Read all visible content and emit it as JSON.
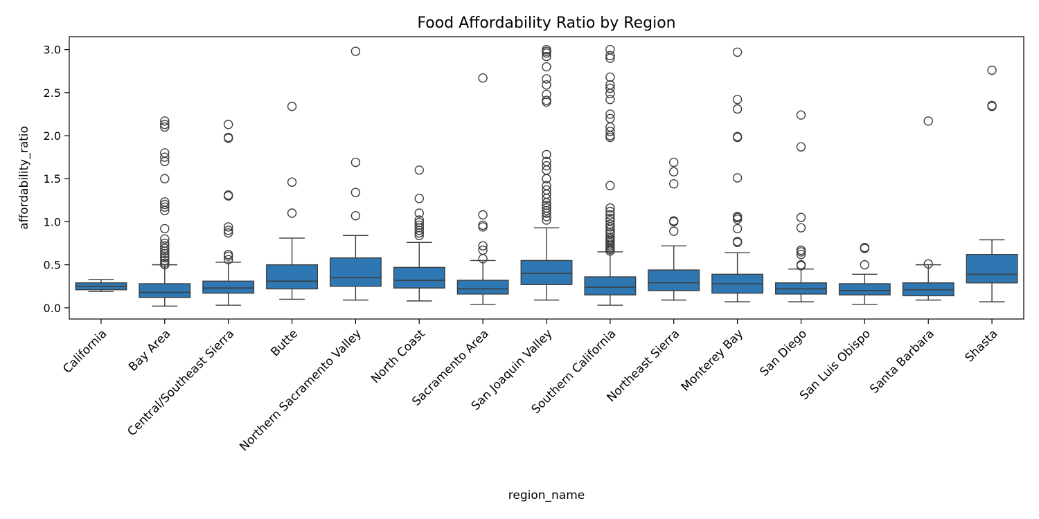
{
  "chart_data": {
    "type": "box",
    "title": "Food Affordability Ratio by Region",
    "xlabel": "region_name",
    "ylabel": "affordability_ratio",
    "ylim": [
      -0.13,
      3.15
    ],
    "yticks": [
      0.0,
      0.5,
      1.0,
      1.5,
      2.0,
      2.5,
      3.0
    ],
    "ytick_labels": [
      "0.0",
      "0.5",
      "1.0",
      "1.5",
      "2.0",
      "2.5",
      "3.0"
    ],
    "grid": false,
    "box_color": "#2f77b2",
    "line_color": "#3d3d3d",
    "categories": [
      "California",
      "Bay Area",
      "Central/Southeast Sierra",
      "Butte",
      "Northern Sacramento Valley",
      "North Coast",
      "Sacramento Area",
      "San Joaquin Valley",
      "Southern California",
      "Northeast Sierra",
      "Monterey Bay",
      "San Diego",
      "San Luis Obispo",
      "Santa Barbara",
      "Shasta"
    ],
    "boxes": [
      {
        "whislo": 0.19,
        "q1": 0.21,
        "med": 0.25,
        "q3": 0.29,
        "whishi": 0.33,
        "fliers": []
      },
      {
        "whislo": 0.02,
        "q1": 0.12,
        "med": 0.18,
        "q3": 0.28,
        "whishi": 0.5,
        "fliers": [
          0.5,
          0.52,
          0.55,
          0.58,
          0.6,
          0.63,
          0.66,
          0.69,
          0.72,
          0.75,
          0.8,
          0.92,
          1.13,
          1.17,
          1.2,
          1.23,
          1.5,
          1.7,
          1.75,
          1.8,
          2.1,
          2.13,
          2.17
        ]
      },
      {
        "whislo": 0.03,
        "q1": 0.17,
        "med": 0.23,
        "q3": 0.31,
        "whishi": 0.53,
        "fliers": [
          0.56,
          0.6,
          0.62,
          0.87,
          0.9,
          0.94,
          1.3,
          1.31,
          1.97,
          1.98,
          2.13
        ]
      },
      {
        "whislo": 0.1,
        "q1": 0.22,
        "med": 0.31,
        "q3": 0.5,
        "whishi": 0.81,
        "fliers": [
          1.1,
          1.46,
          2.34
        ]
      },
      {
        "whislo": 0.09,
        "q1": 0.25,
        "med": 0.35,
        "q3": 0.58,
        "whishi": 0.84,
        "fliers": [
          1.07,
          1.34,
          1.69,
          2.98
        ]
      },
      {
        "whislo": 0.08,
        "q1": 0.23,
        "med": 0.32,
        "q3": 0.47,
        "whishi": 0.76,
        "fliers": [
          0.84,
          0.87,
          0.9,
          0.93,
          0.96,
          0.99,
          1.02,
          1.1,
          1.27,
          1.6
        ]
      },
      {
        "whislo": 0.04,
        "q1": 0.16,
        "med": 0.22,
        "q3": 0.32,
        "whishi": 0.55,
        "fliers": [
          0.57,
          0.67,
          0.72,
          0.94,
          0.96,
          1.08,
          2.67
        ]
      },
      {
        "whislo": 0.09,
        "q1": 0.27,
        "med": 0.4,
        "q3": 0.55,
        "whishi": 0.93,
        "fliers": [
          1.02,
          1.06,
          1.1,
          1.13,
          1.16,
          1.19,
          1.22,
          1.27,
          1.32,
          1.37,
          1.42,
          1.5,
          1.6,
          1.65,
          1.7,
          1.78,
          2.39,
          2.41,
          2.48,
          2.59,
          2.66,
          2.8,
          2.92,
          2.96,
          2.98,
          3.0
        ]
      },
      {
        "whislo": 0.03,
        "q1": 0.15,
        "med": 0.24,
        "q3": 0.36,
        "whishi": 0.65,
        "fliers": [
          0.66,
          0.68,
          0.7,
          0.72,
          0.74,
          0.76,
          0.78,
          0.8,
          0.82,
          0.86,
          0.88,
          0.91,
          0.94,
          0.97,
          1.01,
          1.04,
          1.08,
          1.12,
          1.16,
          1.42,
          1.98,
          2.0,
          2.05,
          2.1,
          2.2,
          2.25,
          2.42,
          2.49,
          2.55,
          2.59,
          2.68,
          2.9,
          2.93,
          3.0
        ]
      },
      {
        "whislo": 0.09,
        "q1": 0.2,
        "med": 0.29,
        "q3": 0.44,
        "whishi": 0.72,
        "fliers": [
          0.89,
          1.0,
          1.01,
          1.44,
          1.58,
          1.69
        ]
      },
      {
        "whislo": 0.07,
        "q1": 0.17,
        "med": 0.28,
        "q3": 0.39,
        "whishi": 0.64,
        "fliers": [
          0.76,
          0.77,
          0.92,
          1.03,
          1.05,
          1.06,
          1.51,
          1.98,
          1.99,
          2.31,
          2.42,
          2.97
        ]
      },
      {
        "whislo": 0.07,
        "q1": 0.16,
        "med": 0.22,
        "q3": 0.29,
        "whishi": 0.45,
        "fliers": [
          0.49,
          0.5,
          0.62,
          0.65,
          0.67,
          0.93,
          1.05,
          1.87,
          2.24
        ]
      },
      {
        "whislo": 0.04,
        "q1": 0.15,
        "med": 0.2,
        "q3": 0.28,
        "whishi": 0.39,
        "fliers": [
          0.5,
          0.69,
          0.7
        ]
      },
      {
        "whislo": 0.09,
        "q1": 0.14,
        "med": 0.21,
        "q3": 0.29,
        "whishi": 0.5,
        "fliers": [
          0.51,
          2.17
        ]
      },
      {
        "whislo": 0.07,
        "q1": 0.29,
        "med": 0.39,
        "q3": 0.62,
        "whishi": 0.79,
        "fliers": [
          2.34,
          2.35,
          2.76
        ]
      }
    ]
  }
}
